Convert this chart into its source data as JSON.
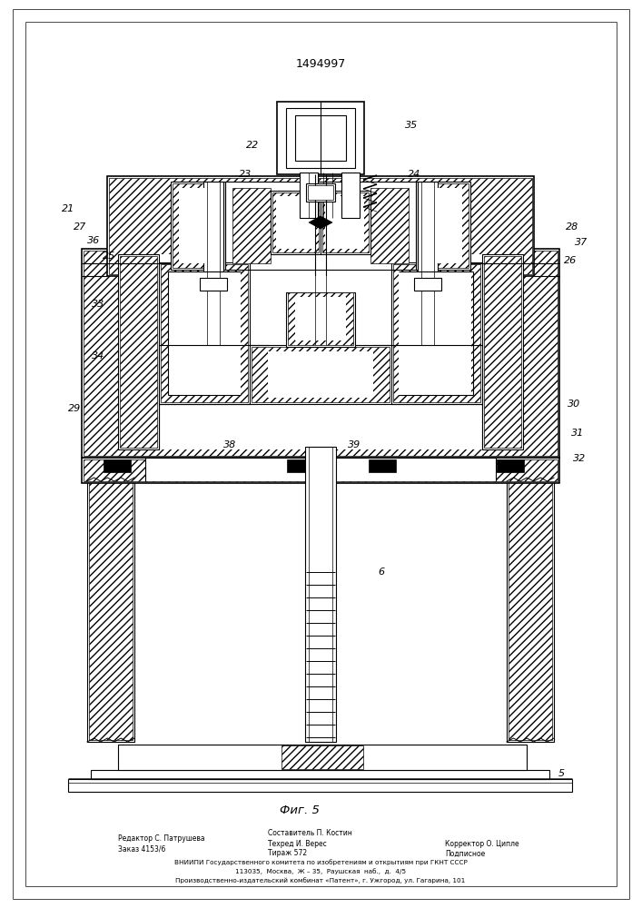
{
  "patent_number": "1494997",
  "fig_label": "Фиг. 5",
  "background_color": "#ffffff",
  "line_color": "#000000",
  "editor_line1": "Редактор С. Патрушева",
  "editor_line2": "Заказ 4153/6",
  "composer_line1": "Составитель П. Костин",
  "composer_line2": "Техред И. Верес",
  "composer_line3": "Тираж 572",
  "corrector_line1": "Корректор О. Ципле",
  "corrector_line2": "Подписное",
  "vniipи1": "ВНИИПИ Государственного комитета по изобретениям и открытиям при ГКНТ СССР",
  "vniipи2": "113035,  Москва,  Ж – 35,  Раушская  наб.,  д.  4/5",
  "vniipи3": "Производственно-издательский комбинат «Патент», г. Ужгород, ул. Гагарина, 101"
}
